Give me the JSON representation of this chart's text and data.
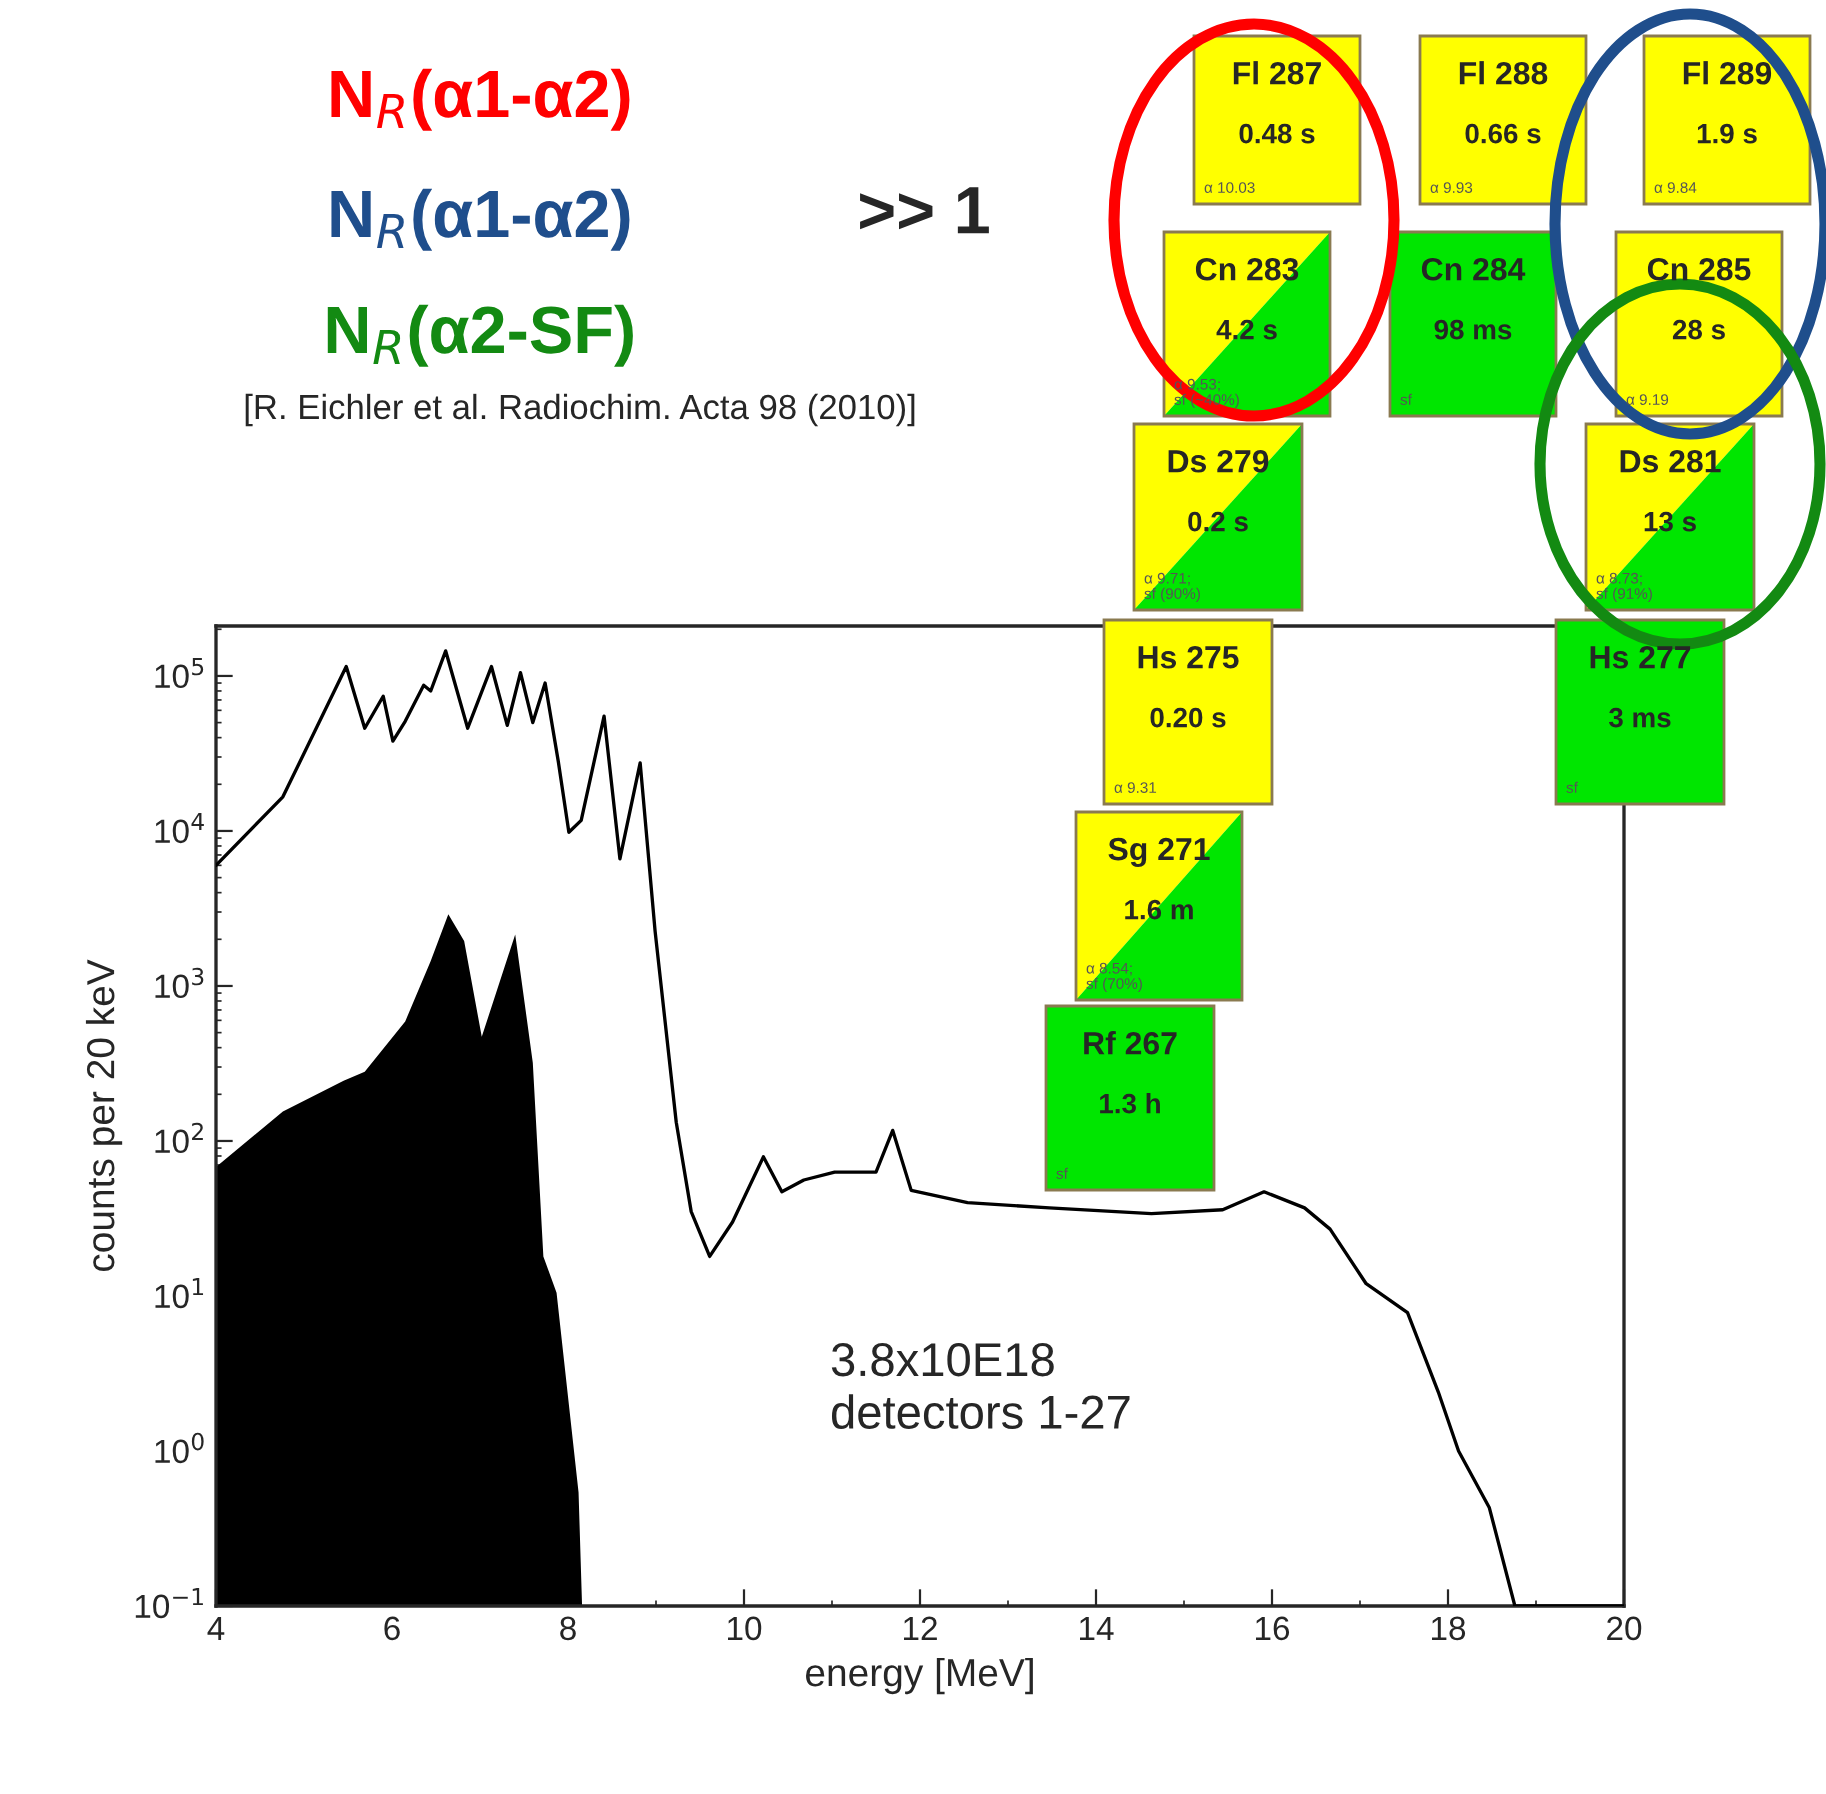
{
  "chart_data": {
    "type": "line",
    "xlabel": "energy [MeV]",
    "ylabel": "counts per 20 keV",
    "log": true,
    "grid": false,
    "xlim": [
      4,
      20
    ],
    "xticks": [
      4,
      6,
      8,
      10,
      12,
      14,
      16,
      18,
      20
    ],
    "ylim": [
      0.1,
      210000
    ],
    "yticks": [
      {
        "value": 0.1,
        "label": "10$^{−1}$"
      },
      {
        "value": 1,
        "label": "10$^{0}$"
      },
      {
        "value": 10,
        "label": "10$^{1}$"
      },
      {
        "value": 100,
        "label": "10$^{2}$"
      },
      {
        "value": 1000,
        "label": "10$^{3}$"
      },
      {
        "value": 10000,
        "label": "10$^{4}$"
      },
      {
        "value": 100000,
        "label": "10$^{5}$"
      }
    ],
    "series": [
      {
        "color": "#000000",
        "x": [
          4,
          4.76,
          5.48,
          5.69,
          5.9,
          6.01,
          6.15,
          6.36,
          6.44,
          6.61,
          6.86,
          7.13,
          7.31,
          7.46,
          7.6,
          7.74,
          7.89,
          8.01,
          8.15,
          8.41,
          8.59,
          8.82,
          8.99,
          9.23,
          9.4,
          9.61,
          9.87,
          10.22,
          10.43,
          10.68,
          11.03,
          11.5,
          11.69,
          11.9,
          12.54,
          13.47,
          14.63,
          15.44,
          15.91,
          16.37,
          16.66,
          17.07,
          17.54,
          17.89,
          18.12,
          18.47,
          18.76,
          20
        ],
        "values": [
          6000,
          16600,
          115000,
          46000,
          74000,
          38000,
          51000,
          87000,
          80000,
          145000,
          46000,
          115000,
          48000,
          105000,
          50000,
          90000,
          28000,
          9800,
          11700,
          55000,
          6600,
          27500,
          2250,
          132,
          35,
          18,
          30,
          79,
          47,
          56,
          63,
          63,
          117,
          48,
          40,
          37,
          34,
          36,
          47,
          37,
          27,
          12,
          7.8,
          2.4,
          1.0,
          0.43,
          0.1,
          0.1
        ]
      },
      {
        "type": "area",
        "color": "#000000",
        "x": [
          4,
          4.76,
          5.45,
          5.69,
          6.15,
          6.44,
          6.64,
          6.82,
          7.02,
          7.4,
          7.6,
          7.72,
          7.87,
          8.12,
          8.16
        ],
        "values": [
          68,
          155,
          245,
          280,
          590,
          1450,
          2900,
          1950,
          470,
          2150,
          320,
          18,
          10.5,
          0.54,
          0.1
        ]
      }
    ],
    "annotations": [
      "N$_{R}$(α1-α2)",
      "N$_{R}$(α1-α2)",
      "N$_{R}$(α2-SF)",
      ">> 1",
      "[R. Eichler et al. Radiochim. Acta 98 (2010)]",
      "3.8x10E18\ndetectors 1-27",
      "Fl 287",
      "0.48 s",
      "α 10.03",
      "Fl 288",
      "0.66 s",
      "α 9.93",
      "Fl 289",
      "1.9 s",
      "α 9.84",
      "Cn 283",
      "4.2 s",
      "α 9.53;\nsf (~40%)",
      "Cn 284",
      "98 ms",
      "sf",
      "Cn 285",
      "28 s",
      "α 9.19",
      "Ds 279",
      "0.2 s",
      "α 9.71;\nsf (90%)",
      "Ds 281",
      "13 s",
      "α 8.73;\nsf (91%)",
      "Hs 275",
      "0.20 s",
      "α 9.31",
      "Hs 277",
      "3 ms",
      "sf",
      "Sg 271",
      "1.6 m",
      "α 8.54;\nsf (70%)",
      "Rf 267",
      "1.3 h",
      "sf"
    ]
  }
}
